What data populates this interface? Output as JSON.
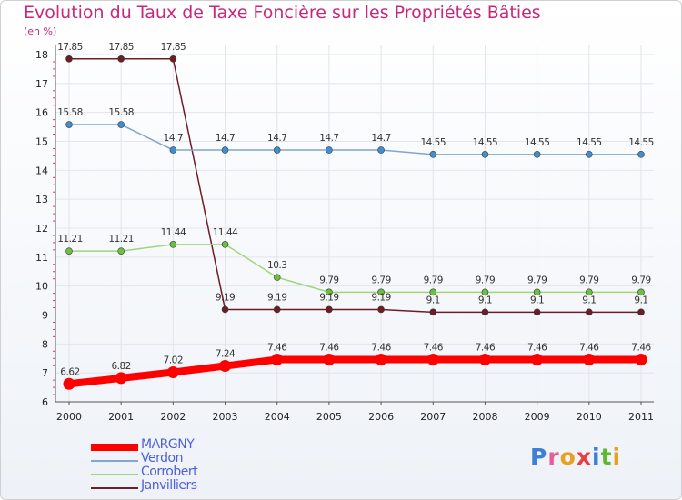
{
  "title": "Evolution du Taux de Taxe Foncière sur les Propriétés Bâties",
  "unit_label": "(en %)",
  "logo": {
    "text": "Proxiti",
    "letter_colors": [
      "#3b7fd6",
      "#e85c9a",
      "#e8a020",
      "#e84040",
      "#3b7fd6",
      "#5fb830",
      "#e8a020"
    ]
  },
  "chart_data": {
    "type": "line",
    "title": "Evolution du Taux de Taxe Foncière sur les Propriétés Bâties",
    "ylabel": "(en %)",
    "xlabel": "",
    "ylim": [
      6,
      18
    ],
    "yticks": [
      "6",
      "7",
      "8",
      "9",
      "10",
      "11",
      "12",
      "13",
      "14",
      "15",
      "16",
      "17",
      "18"
    ],
    "x": [
      "2000",
      "2001",
      "2002",
      "2003",
      "2004",
      "2005",
      "2006",
      "2007",
      "2008",
      "2009",
      "2010",
      "2011"
    ],
    "series": [
      {
        "name": "Janvilliers",
        "color": "#6e1c26",
        "values": [
          17.85,
          17.85,
          17.85,
          9.19,
          9.19,
          9.19,
          9.19,
          9.1,
          9.1,
          9.1,
          9.1,
          9.1
        ],
        "labels": [
          "17.85",
          "17.85",
          "17.85",
          "9.19",
          "9.19",
          "9.19",
          "9.19",
          "9.1",
          "9.1",
          "9.1",
          "9.1",
          "9.1"
        ]
      },
      {
        "name": "Verdon",
        "color": "#7fa7cf",
        "dot_color": "#3f8fd0",
        "values": [
          15.58,
          15.58,
          14.7,
          14.7,
          14.7,
          14.7,
          14.7,
          14.55,
          14.55,
          14.55,
          14.55,
          14.55
        ],
        "labels": [
          "15.58",
          "15.58",
          "14.7",
          "14.7",
          "14.7",
          "14.7",
          "14.7",
          "14.55",
          "14.55",
          "14.55",
          "14.55",
          "14.55"
        ]
      },
      {
        "name": "Corrobert",
        "color": "#9fd67a",
        "dot_color": "#6cc040",
        "values": [
          11.21,
          11.21,
          11.44,
          11.44,
          10.3,
          9.79,
          9.79,
          9.79,
          9.79,
          9.79,
          9.79,
          9.79
        ],
        "labels": [
          "11.21",
          "11.21",
          "11.44",
          "11.44",
          "10.3",
          "9.79",
          "9.79",
          "9.79",
          "9.79",
          "9.79",
          "9.79",
          "9.79"
        ]
      },
      {
        "name": "MARGNY",
        "color": "#ff0000",
        "values": [
          6.62,
          6.82,
          7.02,
          7.24,
          7.46,
          7.46,
          7.46,
          7.46,
          7.46,
          7.46,
          7.46,
          7.46
        ],
        "labels": [
          "6.62",
          "6.82",
          "7.02",
          "7.24",
          "7.46",
          "7.46",
          "7.46",
          "7.46",
          "7.46",
          "7.46",
          "7.46",
          "7.46"
        ]
      }
    ],
    "legend": [
      "MARGNY",
      "Verdon",
      "Corrobert",
      "Janvilliers"
    ]
  }
}
